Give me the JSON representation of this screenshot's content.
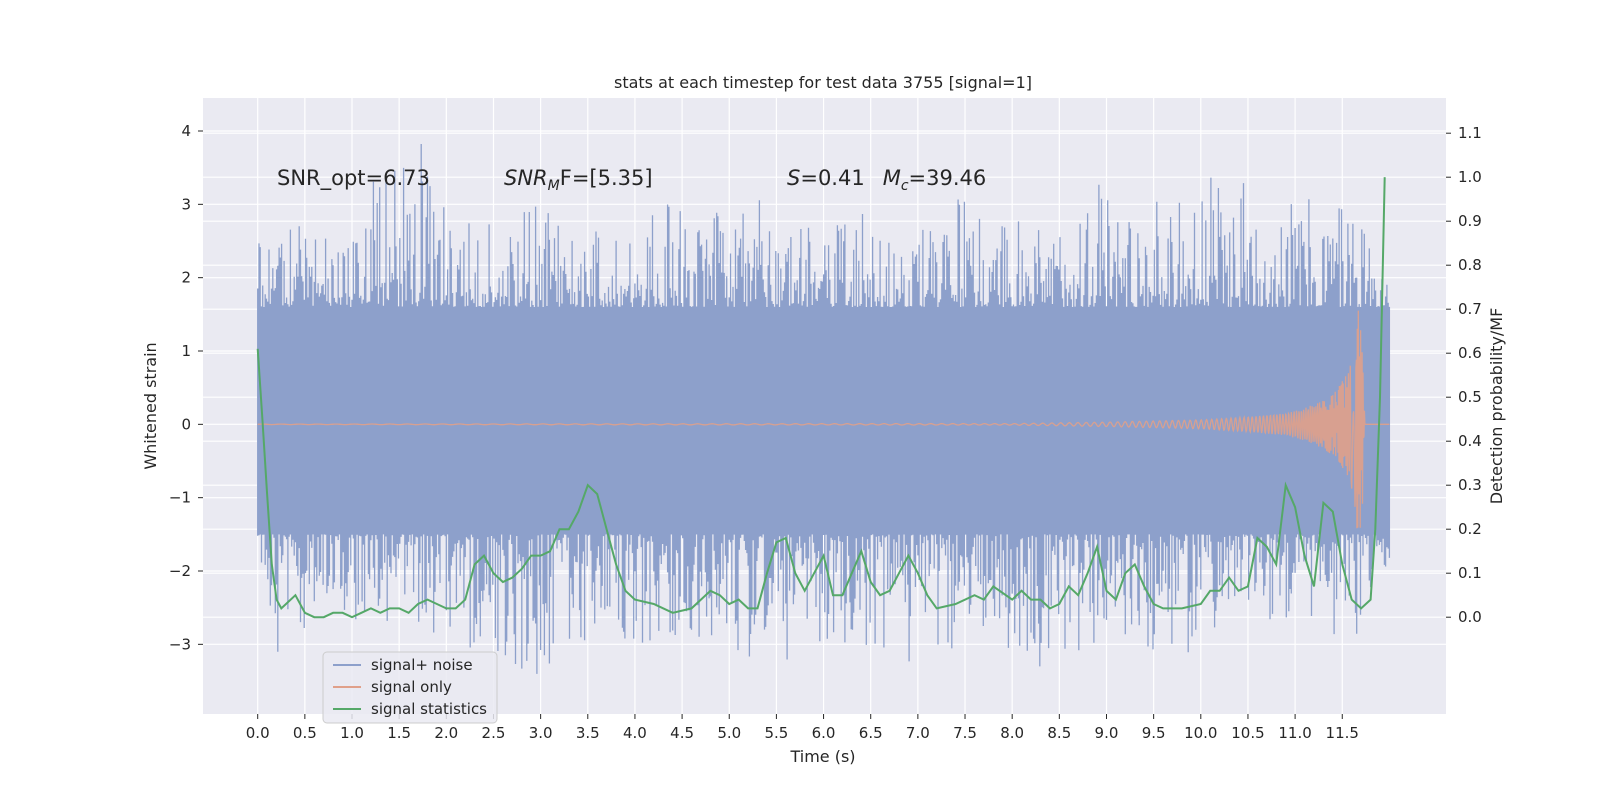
{
  "chart_data": {
    "type": "line",
    "title": "stats at each timestep for test data 3755 [signal=1]",
    "xlabel": "Time (s)",
    "ylabel": "Whitened strain",
    "ylabel_right": "Detection probability/MF",
    "xlim": [
      -0.58,
      12.6
    ],
    "ylim": [
      -3.95,
      4.45
    ],
    "ylim_right": [
      -0.22,
      1.18
    ],
    "xticks": [
      0.0,
      0.5,
      1.0,
      1.5,
      2.0,
      2.5,
      3.0,
      3.5,
      4.0,
      4.5,
      5.0,
      5.5,
      6.0,
      6.5,
      7.0,
      7.5,
      8.0,
      8.5,
      9.0,
      9.5,
      10.0,
      10.5,
      11.0,
      11.5
    ],
    "xtick_labels": [
      "0.0",
      "0.5",
      "1.0",
      "1.5",
      "2.0",
      "2.5",
      "3.0",
      "3.5",
      "4.0",
      "4.5",
      "5.0",
      "5.5",
      "6.0",
      "6.5",
      "7.0",
      "7.5",
      "8.0",
      "8.5",
      "9.0",
      "9.5",
      "10.0",
      "10.5",
      "11.0",
      "11.5"
    ],
    "yticks": [
      -3,
      -2,
      -1,
      0,
      1,
      2,
      3,
      4
    ],
    "ytick_labels": [
      "−3",
      "−2",
      "−1",
      "0",
      "1",
      "2",
      "3",
      "4"
    ],
    "yticks_right": [
      0.0,
      0.1,
      0.2,
      0.3,
      0.4,
      0.5,
      0.6,
      0.7,
      0.8,
      0.9,
      1.0,
      1.1
    ],
    "ytick_labels_right": [
      "0.0",
      "0.1",
      "0.2",
      "0.3",
      "0.4",
      "0.5",
      "0.6",
      "0.7",
      "0.8",
      "0.9",
      "1.0",
      "1.1"
    ],
    "grid": true,
    "annotations": {
      "snr_opt": "SNR_opt=6.73",
      "snr_mf_main": "SNR",
      "snr_mf_sub": "M",
      "snr_mf_rest": "F=[5.35]",
      "s_var": "S",
      "s_val": "=0.41",
      "mc_var": "M",
      "mc_sub": "c",
      "mc_val": "=39.46"
    },
    "legend": {
      "position": "lower-left",
      "entries": [
        "signal+ noise",
        "signal only",
        "signal statistics"
      ]
    },
    "colors": {
      "noise": "#8da0cb",
      "signal": "#e0a08a",
      "stats": "#55a868",
      "background": "#eaeaf2",
      "grid": "#ffffff"
    },
    "noise_series": {
      "name": "signal+ noise",
      "x_range": [
        0.0,
        12.0
      ],
      "envelope_upper": 1.6,
      "envelope_lower": -1.5,
      "peak_max": [
        [
          0.0,
          2.5
        ],
        [
          0.3,
          2.6
        ],
        [
          0.55,
          2.9
        ],
        [
          1.05,
          2.7
        ],
        [
          1.3,
          4.05
        ],
        [
          1.7,
          4.1
        ],
        [
          2.05,
          3.0
        ],
        [
          2.65,
          2.6
        ],
        [
          3.1,
          3.5
        ],
        [
          3.35,
          2.7
        ],
        [
          3.9,
          2.6
        ],
        [
          4.35,
          3.1
        ],
        [
          4.65,
          2.8
        ],
        [
          5.35,
          3.2
        ],
        [
          5.95,
          2.6
        ],
        [
          6.35,
          2.9
        ],
        [
          7.1,
          2.7
        ],
        [
          7.45,
          3.1
        ],
        [
          8.4,
          2.6
        ],
        [
          8.9,
          3.55
        ],
        [
          9.3,
          3.0
        ],
        [
          9.8,
          3.1
        ],
        [
          10.2,
          3.45
        ],
        [
          10.9,
          3.2
        ],
        [
          11.3,
          3.0
        ],
        [
          11.6,
          3.3
        ],
        [
          12.0,
          1.9
        ]
      ],
      "peak_min": [
        [
          0.0,
          -1.6
        ],
        [
          0.15,
          -3.2
        ],
        [
          0.55,
          -2.8
        ],
        [
          1.15,
          -2.7
        ],
        [
          1.95,
          -2.9
        ],
        [
          3.05,
          -3.55
        ],
        [
          3.5,
          -2.9
        ],
        [
          4.15,
          -3.3
        ],
        [
          4.45,
          -2.9
        ],
        [
          5.55,
          -3.35
        ],
        [
          6.0,
          -3.0
        ],
        [
          7.2,
          -3.35
        ],
        [
          7.7,
          -2.8
        ],
        [
          8.45,
          -3.55
        ],
        [
          9.05,
          -2.8
        ],
        [
          9.8,
          -3.3
        ],
        [
          10.6,
          -2.6
        ],
        [
          11.7,
          -3.15
        ],
        [
          12.0,
          -2.3
        ]
      ]
    },
    "signal_series": {
      "name": "signal only",
      "x": [
        0.0,
        8.0,
        9.0,
        10.0,
        10.5,
        10.9,
        11.1,
        11.3,
        11.45,
        11.55,
        11.62,
        11.67,
        11.71,
        11.74,
        12.0
      ],
      "amplitude": [
        0.003,
        0.01,
        0.03,
        0.06,
        0.1,
        0.15,
        0.22,
        0.33,
        0.48,
        0.7,
        1.0,
        1.6,
        1.3,
        0.0,
        0.0
      ]
    },
    "stats_series": {
      "name": "signal statistics",
      "x": [
        0.0,
        0.05,
        0.1,
        0.15,
        0.2,
        0.25,
        0.3,
        0.4,
        0.5,
        0.6,
        0.7,
        0.8,
        0.9,
        1.0,
        1.1,
        1.2,
        1.3,
        1.4,
        1.5,
        1.6,
        1.7,
        1.8,
        1.9,
        2.0,
        2.1,
        2.2,
        2.3,
        2.4,
        2.5,
        2.6,
        2.7,
        2.8,
        2.9,
        3.0,
        3.1,
        3.2,
        3.3,
        3.4,
        3.5,
        3.6,
        3.7,
        3.8,
        3.9,
        4.0,
        4.2,
        4.4,
        4.6,
        4.8,
        4.9,
        5.0,
        5.1,
        5.2,
        5.3,
        5.4,
        5.5,
        5.6,
        5.7,
        5.8,
        5.9,
        6.0,
        6.1,
        6.2,
        6.3,
        6.4,
        6.5,
        6.6,
        6.7,
        6.8,
        6.9,
        7.0,
        7.1,
        7.2,
        7.4,
        7.6,
        7.7,
        7.8,
        8.0,
        8.1,
        8.2,
        8.3,
        8.4,
        8.5,
        8.6,
        8.7,
        8.8,
        8.9,
        9.0,
        9.1,
        9.2,
        9.3,
        9.4,
        9.5,
        9.6,
        9.8,
        10.0,
        10.1,
        10.2,
        10.3,
        10.4,
        10.5,
        10.6,
        10.7,
        10.8,
        10.9,
        11.0,
        11.1,
        11.2,
        11.3,
        11.4,
        11.5,
        11.6,
        11.7,
        11.8,
        11.85,
        11.9,
        11.95
      ],
      "y": [
        0.61,
        0.45,
        0.28,
        0.12,
        0.04,
        0.02,
        0.03,
        0.05,
        0.01,
        0.0,
        0.0,
        0.01,
        0.01,
        0.0,
        0.01,
        0.02,
        0.01,
        0.02,
        0.02,
        0.01,
        0.03,
        0.04,
        0.03,
        0.02,
        0.02,
        0.04,
        0.12,
        0.14,
        0.1,
        0.08,
        0.09,
        0.11,
        0.14,
        0.14,
        0.15,
        0.2,
        0.2,
        0.24,
        0.3,
        0.28,
        0.2,
        0.12,
        0.06,
        0.04,
        0.03,
        0.01,
        0.02,
        0.06,
        0.05,
        0.03,
        0.04,
        0.02,
        0.02,
        0.1,
        0.17,
        0.18,
        0.1,
        0.06,
        0.1,
        0.14,
        0.05,
        0.05,
        0.1,
        0.15,
        0.08,
        0.05,
        0.06,
        0.1,
        0.14,
        0.1,
        0.05,
        0.02,
        0.03,
        0.05,
        0.04,
        0.07,
        0.04,
        0.06,
        0.04,
        0.04,
        0.02,
        0.03,
        0.07,
        0.05,
        0.1,
        0.16,
        0.06,
        0.04,
        0.1,
        0.12,
        0.07,
        0.03,
        0.02,
        0.02,
        0.03,
        0.06,
        0.06,
        0.09,
        0.06,
        0.07,
        0.18,
        0.16,
        0.12,
        0.3,
        0.25,
        0.14,
        0.07,
        0.26,
        0.24,
        0.12,
        0.04,
        0.02,
        0.04,
        0.2,
        0.5,
        1.0
      ]
    }
  }
}
